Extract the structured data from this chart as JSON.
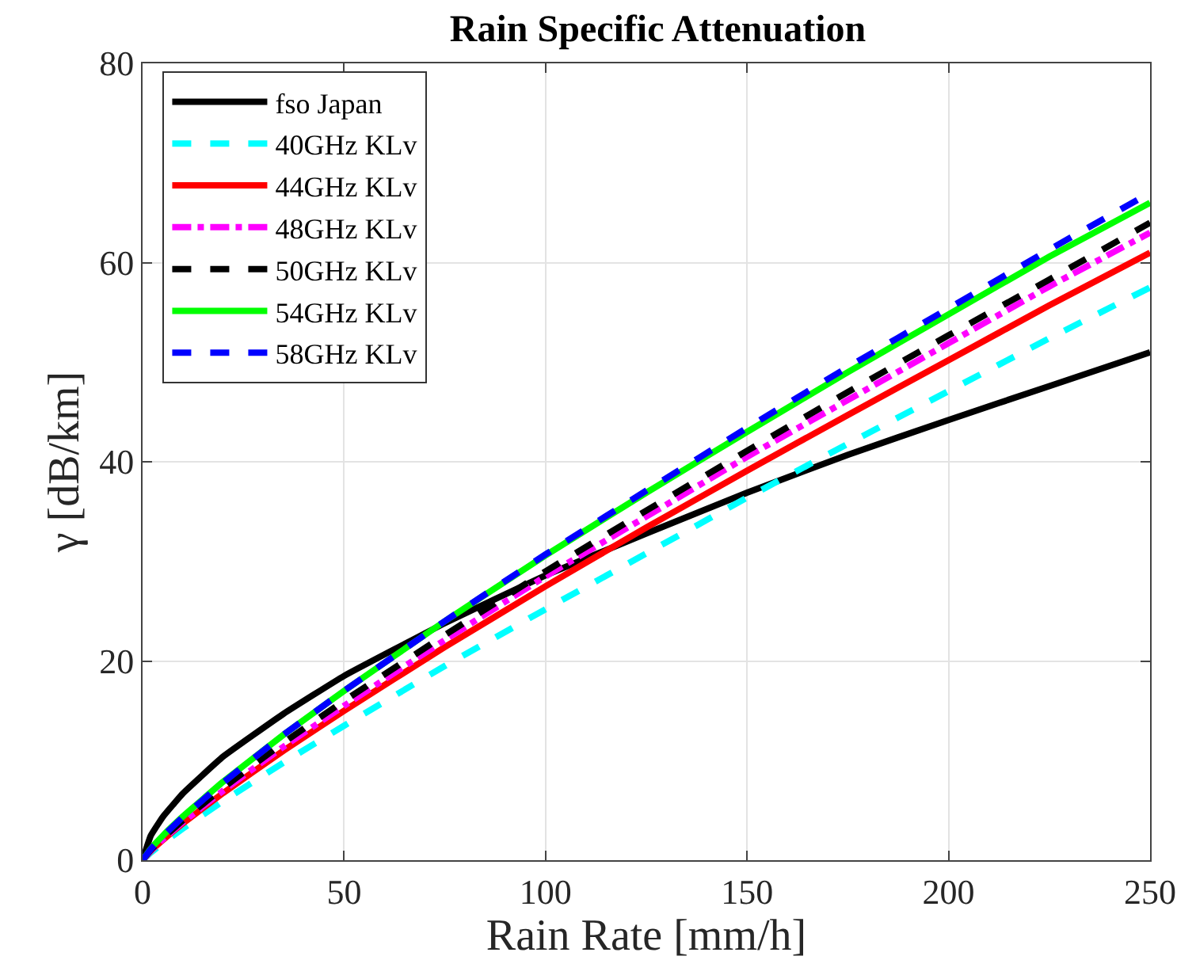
{
  "chart_data": {
    "type": "line",
    "title": "Rain Specific Attenuation",
    "xlabel": "Rain Rate [mm/h]",
    "ylabel": "γ [dB/km]",
    "x": [
      0,
      2,
      5,
      10,
      20,
      35,
      50,
      75,
      100,
      125,
      150,
      175,
      200,
      225,
      250
    ],
    "xlim": [
      0,
      250
    ],
    "xticks": [
      0,
      50,
      100,
      150,
      200,
      250
    ],
    "ylim": [
      0,
      80
    ],
    "yticks": [
      0,
      20,
      40,
      60,
      80
    ],
    "grid": true,
    "legend": "top left",
    "marker": "none",
    "series": [
      {
        "name": "fso Japan",
        "color": "#000000",
        "line_style": "solid",
        "values": [
          0,
          2.43,
          4.33,
          6.7,
          10.4,
          14.7,
          18.5,
          23.8,
          28.6,
          32.8,
          36.9,
          40.7,
          44.2,
          47.6,
          51
        ]
      },
      {
        "name": "40GHz KLv",
        "color": "#00ffff",
        "line_style": "dashed",
        "values": [
          0,
          0.75,
          1.7,
          3.18,
          5.93,
          9.81,
          13.5,
          19.5,
          25.2,
          30.8,
          36.4,
          41.8,
          47.1,
          52.4,
          57.5
        ]
      },
      {
        "name": "44GHz KLv",
        "color": "#ff0000",
        "line_style": "solid",
        "values": [
          0,
          0.91,
          2.01,
          3.69,
          6.75,
          11,
          15,
          21.4,
          27.5,
          33.4,
          39.1,
          44.7,
          50.2,
          55.7,
          61
        ]
      },
      {
        "name": "48GHz KLv",
        "color": "#ff00ff",
        "line_style": "dashdot",
        "values": [
          0,
          0.94,
          2.08,
          3.82,
          6.98,
          11.4,
          15.5,
          22.1,
          28.5,
          34.5,
          40.5,
          46.2,
          51.9,
          57.6,
          63
        ]
      },
      {
        "name": "50GHz KLv",
        "color": "#000000",
        "line_style": "dashed",
        "values": [
          0,
          1,
          2.2,
          4,
          7.26,
          11.8,
          16,
          22.6,
          29,
          35.1,
          41.1,
          47,
          52.7,
          58.3,
          64
        ]
      },
      {
        "name": "54GHz KLv",
        "color": "#00ff00",
        "line_style": "solid",
        "values": [
          0,
          1.13,
          2.45,
          4.39,
          7.88,
          12.6,
          17,
          24,
          30.6,
          36.9,
          43,
          49,
          54.8,
          60.6,
          66
        ]
      },
      {
        "name": "58GHz KLv",
        "color": "#0000ff",
        "line_style": "dashed",
        "values": [
          0,
          1.09,
          2.39,
          4.32,
          7.79,
          12.6,
          17,
          24,
          30.7,
          37.1,
          43.4,
          49.5,
          55.4,
          61.3,
          67
        ]
      }
    ]
  }
}
